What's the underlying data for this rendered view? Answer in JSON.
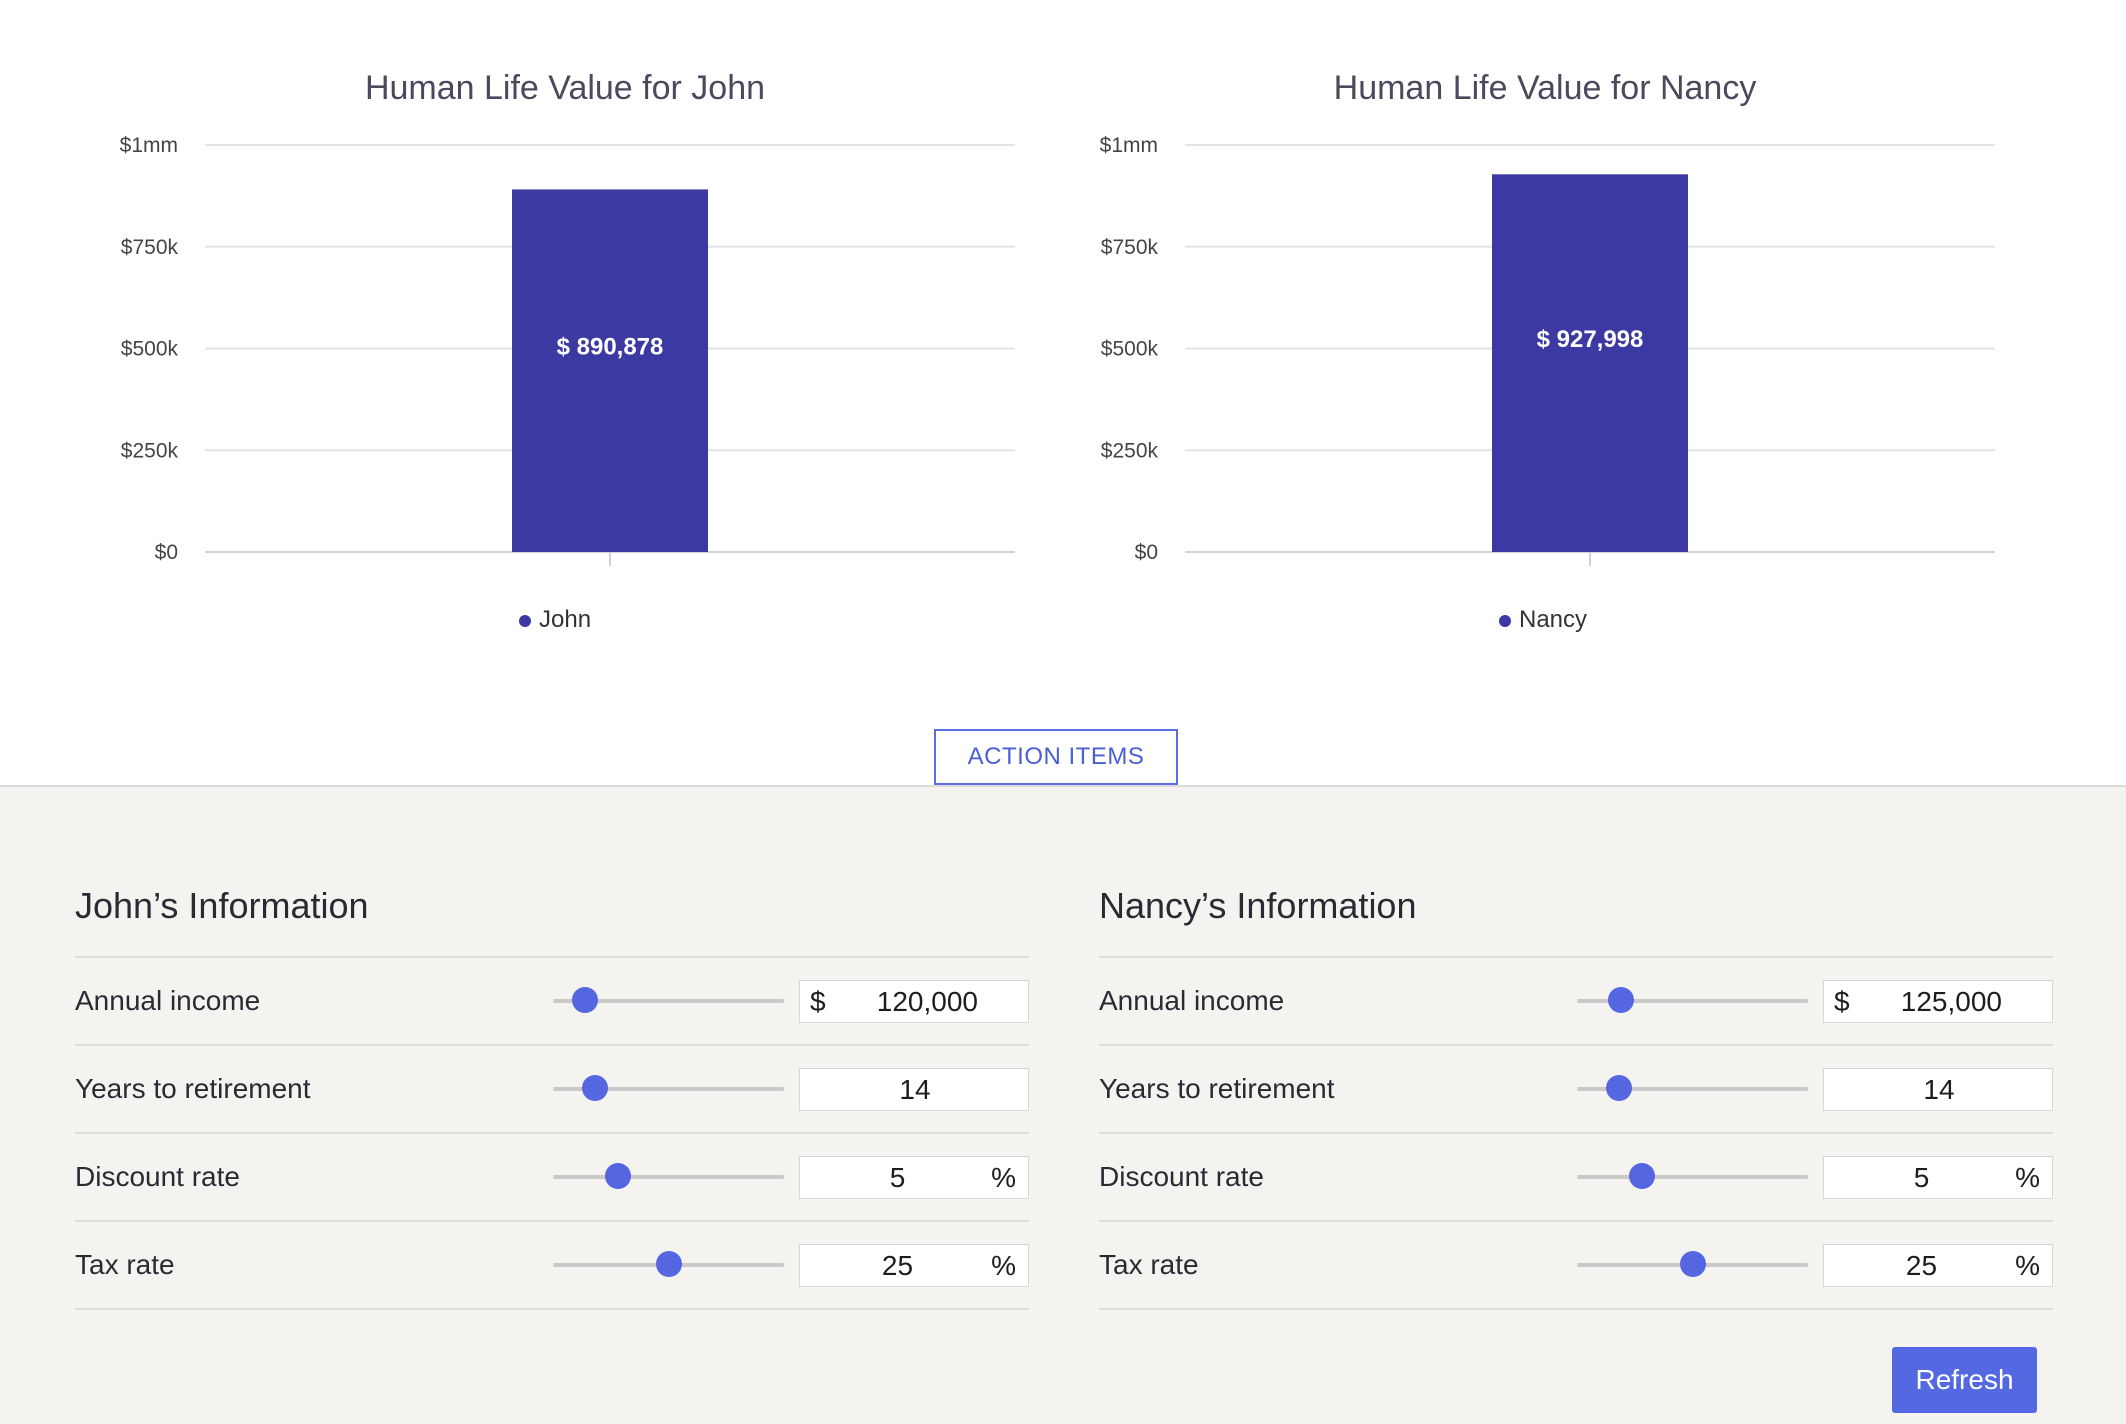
{
  "chart_data": [
    {
      "type": "bar",
      "title": "Human Life Value for John",
      "categories": [
        "John"
      ],
      "values": [
        890878
      ],
      "data_labels": [
        "$ 890,878"
      ],
      "y_ticks": [
        "$0",
        "$250k",
        "$500k",
        "$750k",
        "$1mm"
      ],
      "y_tick_values": [
        0,
        250000,
        500000,
        750000,
        1000000
      ],
      "ylim": [
        0,
        1000000
      ],
      "legend": [
        "John"
      ],
      "legend_position": "bottom-center",
      "grid": true,
      "bar_color": "#3c3aa2"
    },
    {
      "type": "bar",
      "title": "Human Life Value for Nancy",
      "categories": [
        "Nancy"
      ],
      "values": [
        927998
      ],
      "data_labels": [
        "$ 927,998"
      ],
      "y_ticks": [
        "$0",
        "$250k",
        "$500k",
        "$750k",
        "$1mm"
      ],
      "y_tick_values": [
        0,
        250000,
        500000,
        750000,
        1000000
      ],
      "ylim": [
        0,
        1000000
      ],
      "legend": [
        "Nancy"
      ],
      "legend_position": "bottom-center",
      "grid": true,
      "bar_color": "#3c3aa2"
    }
  ],
  "action_items_label": "ACTION ITEMS",
  "panels": [
    {
      "title": "John’s Information",
      "rows": [
        {
          "label": "Annual income",
          "prefix": "$",
          "value": "120,000",
          "suffix": "",
          "slider_level": 0.14
        },
        {
          "label": "Years to retirement",
          "prefix": "",
          "value": "14",
          "suffix": "",
          "slider_level": 0.18
        },
        {
          "label": "Discount rate",
          "prefix": "",
          "value": "5",
          "suffix": "%",
          "slider_level": 0.28
        },
        {
          "label": "Tax rate",
          "prefix": "",
          "value": "25",
          "suffix": "%",
          "slider_level": 0.5
        }
      ]
    },
    {
      "title": "Nancy’s Information",
      "rows": [
        {
          "label": "Annual income",
          "prefix": "$",
          "value": "125,000",
          "suffix": "",
          "slider_level": 0.19
        },
        {
          "label": "Years to retirement",
          "prefix": "",
          "value": "14",
          "suffix": "",
          "slider_level": 0.18
        },
        {
          "label": "Discount rate",
          "prefix": "",
          "value": "5",
          "suffix": "%",
          "slider_level": 0.28
        },
        {
          "label": "Tax rate",
          "prefix": "",
          "value": "25",
          "suffix": "%",
          "slider_level": 0.5
        }
      ]
    }
  ],
  "refresh_label": "Refresh",
  "colors": {
    "accent": "#5468e2",
    "bar": "#3c3aa2",
    "form_background": "#f4f3ef"
  }
}
